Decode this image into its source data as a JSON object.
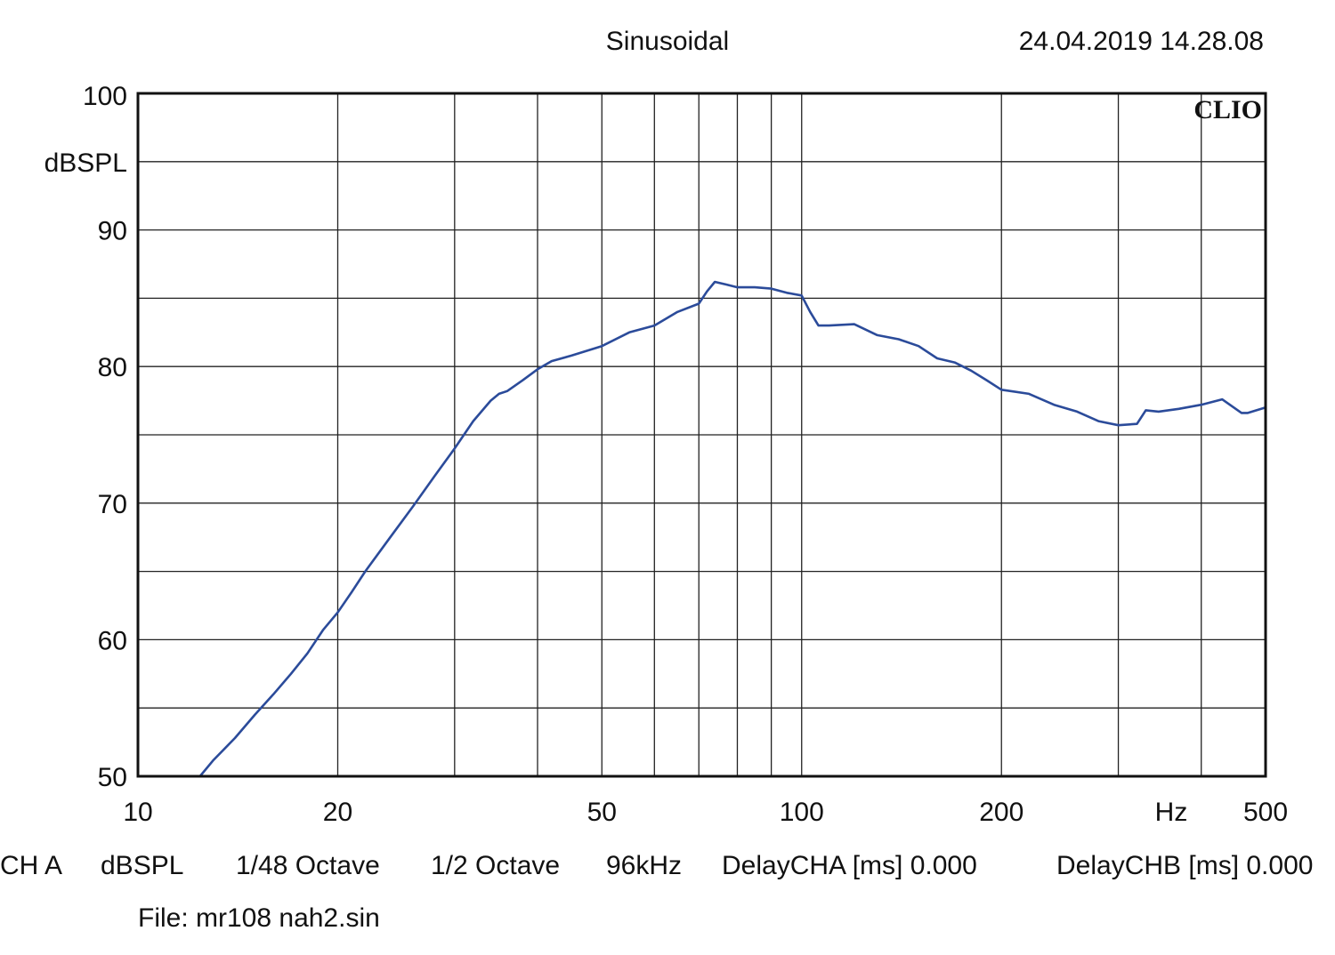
{
  "header": {
    "mode": "Sinusoidal",
    "timestamp": "24.04.2019 14.28.08",
    "brand": "CLIO"
  },
  "chart_data": {
    "type": "line",
    "title": "Sinusoidal",
    "xlabel": "Hz",
    "ylabel": "dBSPL",
    "x_scale": "log",
    "xlim": [
      10,
      500
    ],
    "ylim": [
      50,
      100
    ],
    "grid": true,
    "x_minor_gridlines": [
      30,
      40,
      60,
      70,
      80,
      90,
      300,
      400
    ],
    "y_minor_gridlines": [
      55,
      65,
      75,
      85,
      95
    ],
    "x_ticks": [
      {
        "value": 10,
        "label": "10"
      },
      {
        "value": 20,
        "label": "20"
      },
      {
        "value": 50,
        "label": "50"
      },
      {
        "value": 100,
        "label": "100"
      },
      {
        "value": 200,
        "label": "200"
      },
      {
        "value": 500,
        "label": "500"
      }
    ],
    "y_ticks": [
      {
        "value": 100,
        "label": "100"
      },
      {
        "value": 90,
        "label": "90"
      },
      {
        "value": 80,
        "label": "80"
      },
      {
        "value": 70,
        "label": "70"
      },
      {
        "value": 60,
        "label": "60"
      },
      {
        "value": 50,
        "label": "50"
      }
    ],
    "line_color": "#2b4b9a",
    "series": [
      {
        "x": [
          12.4,
          13.0,
          14.0,
          15.0,
          16.0,
          17.0,
          18.0,
          19.0,
          20.0,
          21.0,
          22.0,
          24.0,
          26.0,
          28.0,
          30.0,
          32.0,
          34.0,
          35.0,
          36.0,
          38.0,
          40.0,
          42.0,
          45.0,
          50.0,
          55.0,
          60.0,
          65.0,
          70.0,
          72.0,
          74.0,
          77.0,
          80.0,
          85.0,
          90.0,
          95.0,
          100.0,
          103.0,
          106.0,
          110.0,
          120.0,
          130.0,
          140.0,
          150.0,
          160.0,
          170.0,
          180.0,
          190.0,
          200.0,
          220.0,
          240.0,
          260.0,
          280.0,
          300.0,
          320.0,
          330.0,
          345.0,
          370.0,
          400.0,
          430.0,
          460.0,
          470.0,
          500.0
        ],
        "y": [
          50.0,
          51.2,
          52.8,
          54.5,
          56.0,
          57.5,
          59.0,
          60.7,
          62.0,
          63.5,
          65.0,
          67.5,
          69.8,
          72.0,
          74.0,
          76.0,
          77.5,
          78.0,
          78.2,
          79.0,
          79.8,
          80.4,
          80.8,
          81.5,
          82.5,
          83.0,
          84.0,
          84.6,
          85.5,
          86.2,
          86.0,
          85.8,
          85.8,
          85.7,
          85.4,
          85.2,
          84.0,
          83.0,
          83.0,
          83.1,
          82.3,
          82.0,
          81.5,
          80.6,
          80.3,
          79.7,
          79.0,
          78.3,
          78.0,
          77.2,
          76.7,
          76.0,
          75.7,
          75.8,
          76.8,
          76.7,
          76.9,
          77.2,
          77.6,
          76.6,
          76.6,
          77.0
        ]
      }
    ]
  },
  "footer": {
    "channel": "CH A",
    "unit": "dBSPL",
    "resolution": "1/48 Octave",
    "smoothing": "1/2 Octave",
    "sample_rate": "96kHz",
    "delay_cha": "DelayCHA [ms] 0.000",
    "delay_chb": "DelayCHB [ms] 0.000",
    "file": "File: mr108 nah2.sin"
  }
}
